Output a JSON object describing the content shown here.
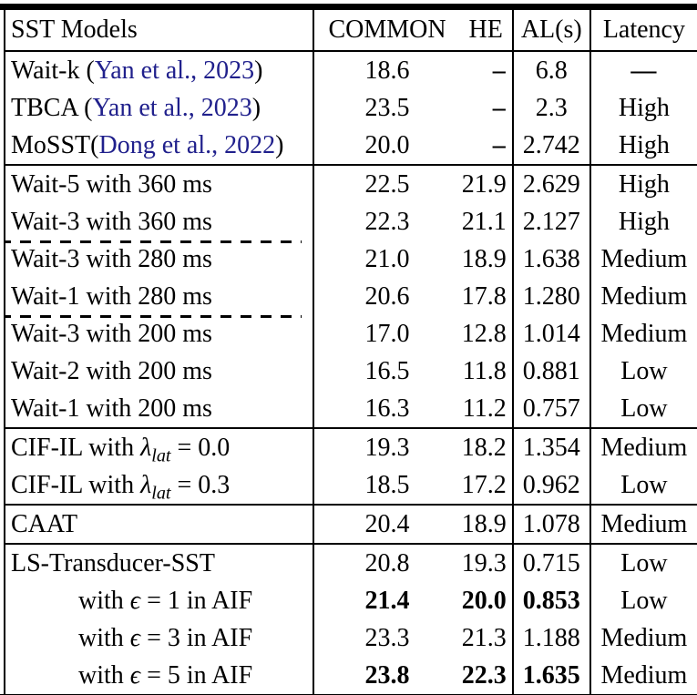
{
  "table": {
    "colors": {
      "citation": "#20208c",
      "ink": "#000000",
      "background": "#ffffff"
    },
    "columns": {
      "model": "SST Models",
      "common": "COMMON",
      "he": "HE",
      "al": "AL(s)",
      "latency": "Latency"
    },
    "rows": [
      {
        "model": [
          {
            "t": "Wait-k ("
          },
          {
            "t": "Yan et al., 2023",
            "cite": true
          },
          {
            "t": ")"
          }
        ],
        "common": "18.6",
        "he": "–",
        "al": "6.8",
        "latency": "—",
        "bold": false,
        "indent": false,
        "sep": "none"
      },
      {
        "model": [
          {
            "t": "TBCA ("
          },
          {
            "t": "Yan et al., 2023",
            "cite": true
          },
          {
            "t": ")"
          }
        ],
        "common": "23.5",
        "he": "–",
        "al": "2.3",
        "latency": "High",
        "bold": false,
        "indent": false,
        "sep": "none"
      },
      {
        "model": [
          {
            "t": "MoSST("
          },
          {
            "t": "Dong et al., 2022",
            "cite": true
          },
          {
            "t": ")"
          }
        ],
        "common": "20.0",
        "he": "–",
        "al": "2.742",
        "latency": "High",
        "bold": false,
        "indent": false,
        "sep": "none"
      },
      {
        "model": [
          {
            "t": "Wait-5 with 360 ms"
          }
        ],
        "common": "22.5",
        "he": "21.9",
        "al": "2.629",
        "latency": "High",
        "bold": false,
        "indent": false,
        "sep": "solid"
      },
      {
        "model": [
          {
            "t": "Wait-3 with 360 ms"
          }
        ],
        "common": "22.3",
        "he": "21.1",
        "al": "2.127",
        "latency": "High",
        "bold": false,
        "indent": false,
        "sep": "none"
      },
      {
        "model": [
          {
            "t": "Wait-3 with 280 ms"
          }
        ],
        "common": "21.0",
        "he": "18.9",
        "al": "1.638",
        "latency": "Medium",
        "bold": false,
        "indent": false,
        "sep": "dashed"
      },
      {
        "model": [
          {
            "t": "Wait-1 with 280 ms"
          }
        ],
        "common": "20.6",
        "he": "17.8",
        "al": "1.280",
        "latency": "Medium",
        "bold": false,
        "indent": false,
        "sep": "none"
      },
      {
        "model": [
          {
            "t": "Wait-3 with 200 ms"
          }
        ],
        "common": "17.0",
        "he": "12.8",
        "al": "1.014",
        "latency": "Medium",
        "bold": false,
        "indent": false,
        "sep": "dashed"
      },
      {
        "model": [
          {
            "t": "Wait-2 with 200 ms"
          }
        ],
        "common": "16.5",
        "he": "11.8",
        "al": "0.881",
        "latency": "Low",
        "bold": false,
        "indent": false,
        "sep": "none"
      },
      {
        "model": [
          {
            "t": "Wait-1 with 200 ms"
          }
        ],
        "common": "16.3",
        "he": "11.2",
        "al": "0.757",
        "latency": "Low",
        "bold": false,
        "indent": false,
        "sep": "none"
      },
      {
        "model": [
          {
            "t": "CIF-IL with "
          },
          {
            "t": "λ",
            "i": true
          },
          {
            "t": "lat",
            "sub": true
          },
          {
            "t": " = 0.0"
          }
        ],
        "common": "19.3",
        "he": "18.2",
        "al": "1.354",
        "latency": "Medium",
        "bold": false,
        "indent": false,
        "sep": "solid"
      },
      {
        "model": [
          {
            "t": "CIF-IL with "
          },
          {
            "t": "λ",
            "i": true
          },
          {
            "t": "lat",
            "sub": true
          },
          {
            "t": " = 0.3"
          }
        ],
        "common": "18.5",
        "he": "17.2",
        "al": "0.962",
        "latency": "Low",
        "bold": false,
        "indent": false,
        "sep": "none"
      },
      {
        "model": [
          {
            "t": "CAAT"
          }
        ],
        "common": "20.4",
        "he": "18.9",
        "al": "1.078",
        "latency": "Medium",
        "bold": false,
        "indent": false,
        "sep": "solid"
      },
      {
        "model": [
          {
            "t": "LS-Transducer-SST"
          }
        ],
        "common": "20.8",
        "he": "19.3",
        "al": "0.715",
        "latency": "Low",
        "bold": false,
        "indent": false,
        "sep": "solid"
      },
      {
        "model": [
          {
            "t": "with "
          },
          {
            "t": "ϵ",
            "i": true
          },
          {
            "t": " = 1 in AIF"
          }
        ],
        "common": "21.4",
        "he": "20.0",
        "al": "0.853",
        "latency": "Low",
        "bold": true,
        "indent": true,
        "sep": "none"
      },
      {
        "model": [
          {
            "t": "with "
          },
          {
            "t": "ϵ",
            "i": true
          },
          {
            "t": " = 3 in AIF"
          }
        ],
        "common": "23.3",
        "he": "21.3",
        "al": "1.188",
        "latency": "Medium",
        "bold": false,
        "indent": true,
        "sep": "none"
      },
      {
        "model": [
          {
            "t": "with "
          },
          {
            "t": "ϵ",
            "i": true
          },
          {
            "t": " = 5 in AIF"
          }
        ],
        "common": "23.8",
        "he": "22.3",
        "al": "1.635",
        "latency": "Medium",
        "bold": true,
        "indent": true,
        "sep": "none"
      }
    ]
  }
}
